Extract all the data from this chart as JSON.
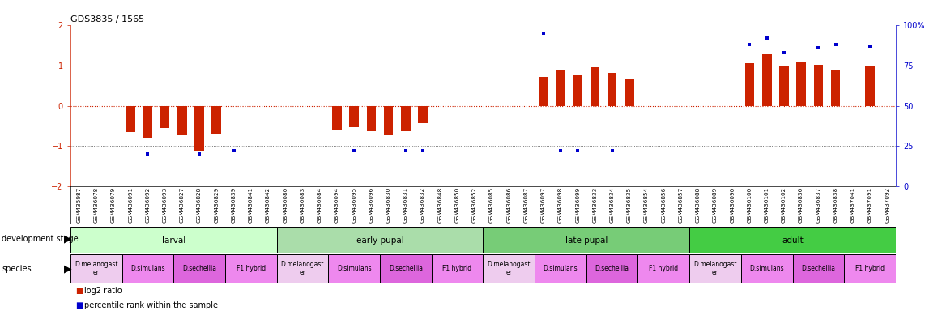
{
  "title": "GDS3835 / 1565",
  "samples": [
    "GSM435987",
    "GSM436078",
    "GSM436079",
    "GSM436091",
    "GSM436092",
    "GSM436093",
    "GSM436827",
    "GSM436828",
    "GSM436829",
    "GSM436839",
    "GSM436841",
    "GSM436842",
    "GSM436080",
    "GSM436083",
    "GSM436084",
    "GSM436094",
    "GSM436095",
    "GSM436096",
    "GSM436830",
    "GSM436831",
    "GSM436832",
    "GSM436848",
    "GSM436850",
    "GSM436852",
    "GSM436085",
    "GSM436086",
    "GSM436087",
    "GSM436097",
    "GSM436098",
    "GSM436099",
    "GSM436833",
    "GSM436834",
    "GSM436835",
    "GSM436854",
    "GSM436856",
    "GSM436857",
    "GSM436088",
    "GSM436089",
    "GSM436090",
    "GSM436100",
    "GSM436101",
    "GSM436102",
    "GSM436836",
    "GSM436837",
    "GSM436838",
    "GSM437041",
    "GSM437091",
    "GSM437092"
  ],
  "log2_ratio": [
    0.0,
    0.0,
    0.0,
    -0.65,
    -0.8,
    -0.55,
    -0.72,
    -1.12,
    -0.68,
    0.0,
    0.0,
    0.0,
    0.0,
    0.0,
    0.0,
    -0.58,
    -0.52,
    -0.62,
    -0.72,
    -0.62,
    -0.42,
    0.0,
    0.0,
    0.0,
    0.0,
    0.0,
    0.0,
    0.72,
    0.88,
    0.78,
    0.95,
    0.82,
    0.68,
    0.0,
    0.0,
    0.0,
    0.0,
    0.0,
    0.0,
    1.05,
    1.28,
    0.98,
    1.1,
    1.02,
    0.88,
    0.0,
    0.98,
    0.0
  ],
  "percentile": [
    null,
    null,
    null,
    null,
    20,
    null,
    null,
    20,
    null,
    22,
    null,
    null,
    null,
    null,
    null,
    null,
    22,
    null,
    null,
    22,
    22,
    null,
    null,
    null,
    null,
    null,
    null,
    null,
    22,
    22,
    null,
    22,
    null,
    null,
    null,
    null,
    null,
    null,
    null,
    88,
    null,
    83,
    null,
    86,
    null,
    null,
    null,
    null
  ],
  "percentile2": [
    null,
    null,
    null,
    null,
    null,
    null,
    null,
    null,
    null,
    null,
    null,
    null,
    null,
    null,
    null,
    null,
    null,
    null,
    null,
    null,
    null,
    null,
    null,
    null,
    null,
    null,
    null,
    95,
    null,
    null,
    null,
    null,
    null,
    null,
    null,
    null,
    null,
    null,
    null,
    null,
    92,
    null,
    null,
    null,
    88,
    null,
    87,
    null
  ],
  "dev_stages": [
    {
      "label": "larval",
      "start": 0,
      "end": 12,
      "color": "#ccffcc"
    },
    {
      "label": "early pupal",
      "start": 12,
      "end": 24,
      "color": "#aaddaa"
    },
    {
      "label": "late pupal",
      "start": 24,
      "end": 36,
      "color": "#77cc77"
    },
    {
      "label": "adult",
      "start": 36,
      "end": 48,
      "color": "#44cc44"
    }
  ],
  "species_groups": [
    {
      "label": "D.melanogast\ner",
      "start": 0,
      "end": 3,
      "color": "#eeccee"
    },
    {
      "label": "D.simulans",
      "start": 3,
      "end": 6,
      "color": "#ee88ee"
    },
    {
      "label": "D.sechellia",
      "start": 6,
      "end": 9,
      "color": "#dd66dd"
    },
    {
      "label": "F1 hybrid",
      "start": 9,
      "end": 12,
      "color": "#ee88ee"
    },
    {
      "label": "D.melanogast\ner",
      "start": 12,
      "end": 15,
      "color": "#eeccee"
    },
    {
      "label": "D.simulans",
      "start": 15,
      "end": 18,
      "color": "#ee88ee"
    },
    {
      "label": "D.sechellia",
      "start": 18,
      "end": 21,
      "color": "#dd66dd"
    },
    {
      "label": "F1 hybrid",
      "start": 21,
      "end": 24,
      "color": "#ee88ee"
    },
    {
      "label": "D.melanogast\ner",
      "start": 24,
      "end": 27,
      "color": "#eeccee"
    },
    {
      "label": "D.simulans",
      "start": 27,
      "end": 30,
      "color": "#ee88ee"
    },
    {
      "label": "D.sechellia",
      "start": 30,
      "end": 33,
      "color": "#dd66dd"
    },
    {
      "label": "F1 hybrid",
      "start": 33,
      "end": 36,
      "color": "#ee88ee"
    },
    {
      "label": "D.melanogast\ner",
      "start": 36,
      "end": 39,
      "color": "#eeccee"
    },
    {
      "label": "D.simulans",
      "start": 39,
      "end": 42,
      "color": "#ee88ee"
    },
    {
      "label": "D.sechellia",
      "start": 42,
      "end": 45,
      "color": "#dd66dd"
    },
    {
      "label": "F1 hybrid",
      "start": 45,
      "end": 48,
      "color": "#ee88ee"
    }
  ],
  "bar_color": "#cc2200",
  "point_color": "#0000cc",
  "ylim": [
    -2,
    2
  ],
  "y2lim": [
    0,
    100
  ],
  "yticks_left": [
    -2,
    -1,
    0,
    1,
    2
  ],
  "yticks_right": [
    0,
    25,
    50,
    75,
    100
  ],
  "figwidth": 11.58,
  "figheight": 3.84,
  "dpi": 100
}
